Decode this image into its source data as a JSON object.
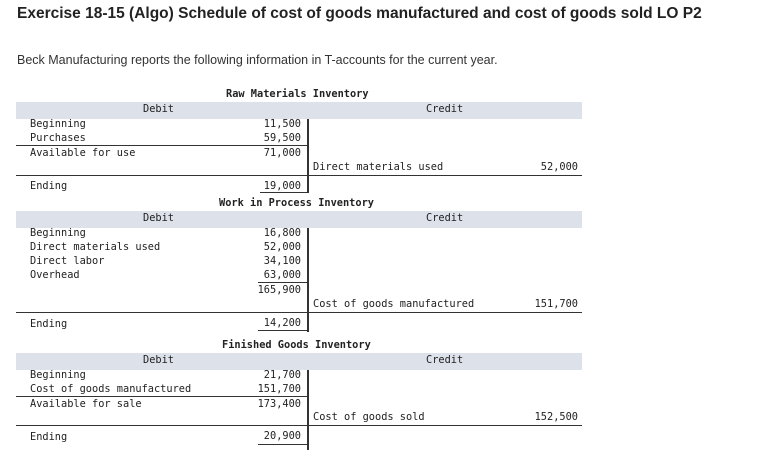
{
  "header": {
    "title": "Exercise 18-15 (Algo) Schedule of cost of goods manufactured and cost of goods sold LO P2",
    "intro": "Beck Manufacturing reports the following information in T-accounts for the current year."
  },
  "labels": {
    "debit": "Debit",
    "credit": "Credit"
  },
  "raw_materials": {
    "title": "Raw Materials Inventory",
    "beginning_label": "Beginning",
    "beginning": "11,500",
    "purchases_label": "Purchases",
    "purchases": "59,500",
    "available_label": "Available for use",
    "available": "71,000",
    "credit_label": "Direct materials used",
    "credit_value": "52,000",
    "ending_label": "Ending",
    "ending": "19,000"
  },
  "wip": {
    "title": "Work in Process Inventory",
    "beginning_label": "Beginning",
    "beginning": "16,800",
    "dm_label": "Direct materials used",
    "dm": "52,000",
    "dl_label": "Direct labor",
    "dl": "34,100",
    "oh_label": "Overhead",
    "oh": "63,000",
    "total": "165,900",
    "credit_label": "Cost of goods manufactured",
    "credit_value": "151,700",
    "ending_label": "Ending",
    "ending": "14,200"
  },
  "finished_goods": {
    "title": "Finished Goods Inventory",
    "beginning_label": "Beginning",
    "beginning": "21,700",
    "cogm_label": "Cost of goods manufactured",
    "cogm": "151,700",
    "available_label": "Available for sale",
    "available": "173,400",
    "credit_label": "Cost of goods sold",
    "credit_value": "152,500",
    "ending_label": "Ending",
    "ending": "20,900"
  }
}
